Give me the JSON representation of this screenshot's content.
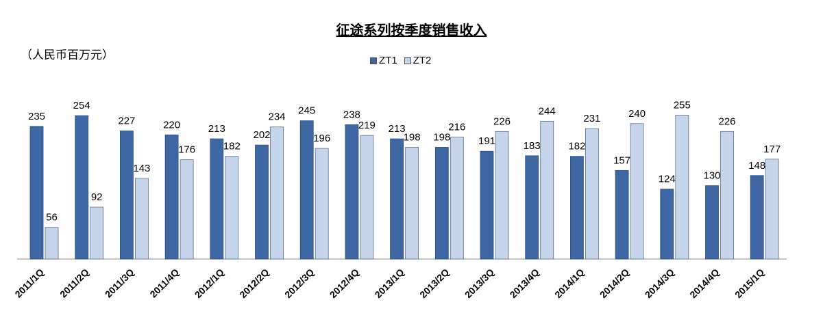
{
  "chart_data": {
    "type": "bar",
    "title": "征途系列按季度销售收入",
    "unit_label": "（人民币百万元）",
    "categories": [
      "2011/1Q",
      "2011/2Q",
      "2011/3Q",
      "2011/4Q",
      "2012/1Q",
      "2012/2Q",
      "2012/3Q",
      "2012/4Q",
      "2013/1Q",
      "2013/2Q",
      "2013/3Q",
      "2013/4Q",
      "2014/1Q",
      "2014/2Q",
      "2014/3Q",
      "2014/4Q",
      "2015/1Q"
    ],
    "series": [
      {
        "name": "ZT1",
        "color": "#3f67a3",
        "values": [
          235,
          254,
          227,
          220,
          213,
          202,
          245,
          238,
          213,
          198,
          191,
          183,
          182,
          157,
          124,
          130,
          148
        ]
      },
      {
        "name": "ZT2",
        "color": "#c6d5ec",
        "values": [
          56,
          92,
          143,
          176,
          182,
          234,
          196,
          219,
          198,
          216,
          226,
          244,
          231,
          240,
          255,
          226,
          177
        ]
      }
    ],
    "xlabel": "",
    "ylabel": "",
    "ylim": [
      0,
      255
    ],
    "grid": false,
    "legend_position": "top-center"
  }
}
